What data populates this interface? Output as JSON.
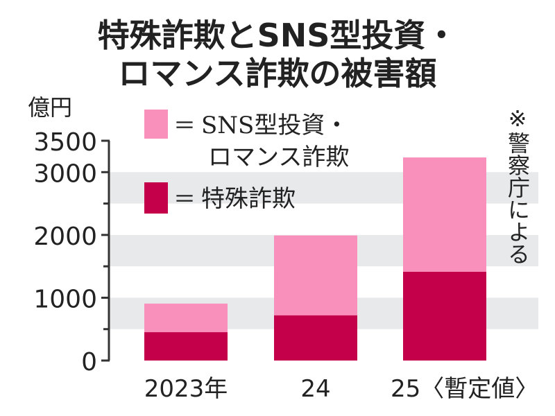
{
  "chart_data": {
    "type": "bar",
    "stacked": true,
    "title_line1": "特殊詐欺とSNS型投資・",
    "title_line2": "ロマンス詐欺の被害額",
    "ylabel": "億円",
    "ylim": [
      0,
      3500
    ],
    "yticks": [
      0,
      1000,
      2000,
      3000,
      3500
    ],
    "ytick_labels": [
      "0",
      "1000",
      "2000",
      "3000",
      "3500"
    ],
    "categories": [
      "2023年",
      "24",
      "25〈暫定値〉"
    ],
    "series": [
      {
        "name": "特殊詐欺",
        "values": [
          452,
          721,
          1414
        ],
        "color": "#c4004a"
      },
      {
        "name": "SNS型投資・ロマンス詐欺",
        "values": [
          455,
          1271,
          1820
        ],
        "color": "#f98fbb"
      }
    ],
    "legend": [
      {
        "eq": "＝",
        "line1": "SNS型投資・",
        "line2": "ロマンス詐欺",
        "color": "#f98fbb"
      },
      {
        "eq": "＝",
        "line1": "特殊詐欺",
        "color": "#c4004a"
      }
    ],
    "legend_position": "top-left",
    "band_color": "#e8e9ea",
    "note": "※警察庁による"
  }
}
